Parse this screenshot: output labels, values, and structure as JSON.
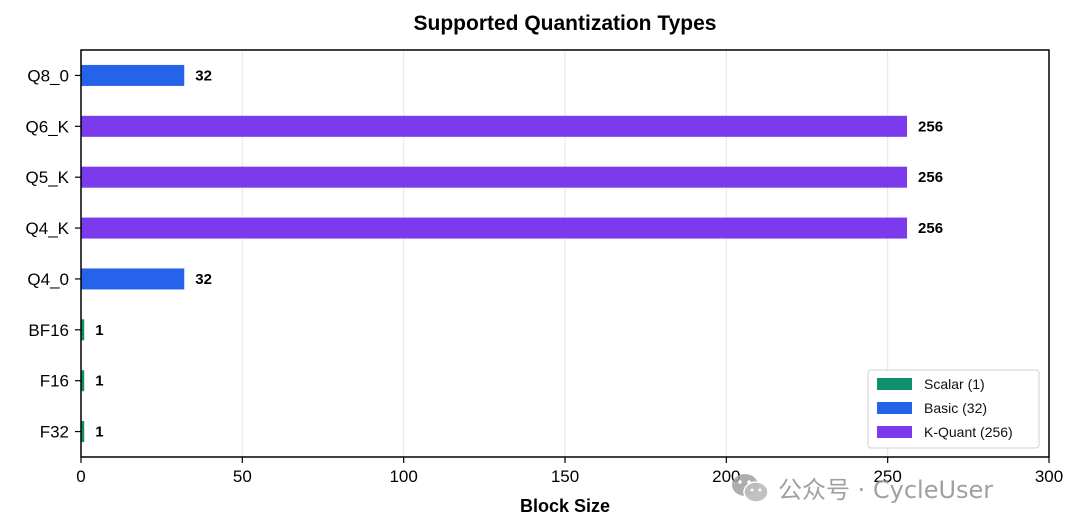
{
  "chart_data": {
    "type": "bar",
    "orientation": "horizontal",
    "title": "Supported Quantization Types",
    "xlabel": "Block Size",
    "ylabel": "",
    "xlim": [
      0,
      300
    ],
    "xticks": [
      0,
      50,
      100,
      150,
      200,
      250,
      300
    ],
    "grid": "x",
    "categories": [
      "Q8_0",
      "Q6_K",
      "Q5_K",
      "Q4_K",
      "Q4_0",
      "BF16",
      "F16",
      "F32"
    ],
    "values": [
      32,
      256,
      256,
      256,
      32,
      1,
      1,
      1
    ],
    "groups": [
      "Basic",
      "K-Quant",
      "K-Quant",
      "K-Quant",
      "Basic",
      "Scalar",
      "Scalar",
      "Scalar"
    ],
    "legend_position": "bottom-right",
    "legend": [
      {
        "key": "Scalar",
        "label": "Scalar (1)",
        "color": "#0e8f6e"
      },
      {
        "key": "Basic",
        "label": "Basic (32)",
        "color": "#2563eb"
      },
      {
        "key": "K-Quant",
        "label": "K-Quant (256)",
        "color": "#7c3aed"
      }
    ]
  },
  "watermark": {
    "icon": "wechat-icon",
    "text": "公众号 · CycleUser"
  }
}
